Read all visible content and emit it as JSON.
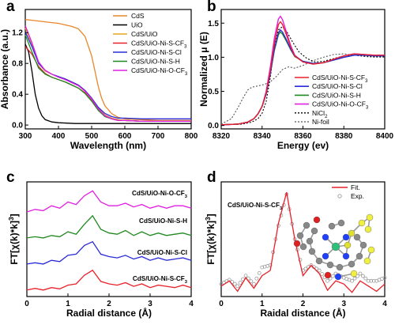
{
  "panels": [
    {
      "letter": "a"
    },
    {
      "letter": "b"
    },
    {
      "letter": "c"
    },
    {
      "letter": "d"
    }
  ],
  "chart_data": [
    {
      "panel": "a",
      "type": "line",
      "xlabel": "Wavelength (nm)",
      "ylabel": "Absorbance (a.u.)",
      "xlim": [
        300,
        800
      ],
      "ylim": [
        -0.05,
        1.5
      ],
      "xticks": [
        "300",
        "400",
        "500",
        "600",
        "700",
        "800"
      ],
      "yticks": [
        "0.0",
        "0.4",
        "0.8",
        "1.2"
      ],
      "legend_position": "top-right",
      "series": [
        {
          "name": "CdS",
          "color": "#e8862a",
          "x": [
            300,
            320,
            340,
            360,
            380,
            400,
            420,
            440,
            460,
            480,
            500,
            510,
            520,
            530,
            540,
            560,
            580,
            600,
            650,
            700,
            750,
            800
          ],
          "y": [
            1.37,
            1.36,
            1.35,
            1.34,
            1.33,
            1.32,
            1.3,
            1.28,
            1.25,
            1.15,
            0.9,
            0.7,
            0.5,
            0.35,
            0.25,
            0.15,
            0.1,
            0.08,
            0.07,
            0.06,
            0.06,
            0.06
          ]
        },
        {
          "name": "UiO",
          "color": "#000000",
          "x": [
            300,
            310,
            320,
            330,
            340,
            350,
            360,
            380,
            400,
            450,
            500,
            600,
            700,
            800
          ],
          "y": [
            1.05,
            0.95,
            0.7,
            0.4,
            0.22,
            0.12,
            0.07,
            0.04,
            0.03,
            0.02,
            0.02,
            0.02,
            0.02,
            0.02
          ]
        },
        {
          "name": "CdS/UiO",
          "color": "#e6a51c",
          "x": [
            300,
            320,
            340,
            360,
            380,
            400,
            420,
            440,
            460,
            480,
            500,
            520,
            540,
            560,
            580,
            600,
            650,
            700,
            750,
            800
          ],
          "y": [
            1.26,
            1.05,
            0.8,
            0.7,
            0.66,
            0.63,
            0.6,
            0.56,
            0.52,
            0.45,
            0.35,
            0.22,
            0.13,
            0.09,
            0.07,
            0.06,
            0.05,
            0.05,
            0.05,
            0.05
          ]
        },
        {
          "name": "CdS/UiO-Ni-S-CF3",
          "color": "#e8202a",
          "x": [
            300,
            320,
            340,
            360,
            380,
            400,
            420,
            440,
            460,
            480,
            500,
            520,
            540,
            560,
            580,
            600,
            650,
            700,
            750,
            800
          ],
          "y": [
            1.02,
            0.92,
            0.76,
            0.67,
            0.62,
            0.59,
            0.56,
            0.52,
            0.48,
            0.42,
            0.32,
            0.2,
            0.12,
            0.08,
            0.06,
            0.06,
            0.05,
            0.05,
            0.05,
            0.05
          ]
        },
        {
          "name": "CdS/UiO-Ni-S-Cl",
          "color": "#2a2ad8",
          "x": [
            300,
            320,
            340,
            360,
            380,
            400,
            420,
            440,
            460,
            480,
            500,
            520,
            540,
            560,
            580,
            600,
            650,
            700,
            750,
            800
          ],
          "y": [
            1.21,
            1.02,
            0.8,
            0.71,
            0.66,
            0.63,
            0.6,
            0.56,
            0.52,
            0.45,
            0.35,
            0.23,
            0.15,
            0.11,
            0.09,
            0.09,
            0.08,
            0.08,
            0.08,
            0.08
          ]
        },
        {
          "name": "CdS/UiO-Ni-S-H",
          "color": "#1f8a1f",
          "x": [
            300,
            320,
            340,
            360,
            380,
            400,
            420,
            440,
            460,
            480,
            500,
            520,
            540,
            560,
            580,
            600,
            650,
            700,
            750,
            800
          ],
          "y": [
            1.17,
            0.95,
            0.74,
            0.66,
            0.62,
            0.59,
            0.56,
            0.52,
            0.48,
            0.41,
            0.31,
            0.19,
            0.11,
            0.08,
            0.06,
            0.06,
            0.05,
            0.05,
            0.05,
            0.05
          ]
        },
        {
          "name": "CdS/UiO-Ni-O-CF3",
          "color": "#e020e0",
          "x": [
            300,
            320,
            340,
            360,
            380,
            400,
            420,
            440,
            460,
            480,
            500,
            520,
            540,
            560,
            580,
            600,
            650,
            700,
            750,
            800
          ],
          "y": [
            1.29,
            1.07,
            0.82,
            0.71,
            0.66,
            0.62,
            0.59,
            0.55,
            0.51,
            0.44,
            0.34,
            0.21,
            0.12,
            0.08,
            0.06,
            0.06,
            0.05,
            0.05,
            0.05,
            0.05
          ]
        }
      ]
    },
    {
      "panel": "b",
      "type": "line",
      "xlabel": "Energy (ev)",
      "ylabel": "Normalized μ (E)",
      "xlim": [
        8320,
        8400
      ],
      "ylim": [
        -0.05,
        1.7
      ],
      "xticks": [
        "8320",
        "8340",
        "8360",
        "8380",
        "8400"
      ],
      "yticks": [
        "0.0",
        "0.5",
        "1.0",
        "1.5"
      ],
      "legend_position": "bottom-right",
      "series": [
        {
          "name": "CdS/UiO-Ni-S-CF3",
          "color": "#e8202a",
          "dash": "",
          "x": [
            8320,
            8328,
            8333,
            8336,
            8338,
            8340,
            8342,
            8344,
            8346,
            8348,
            8349,
            8350,
            8352,
            8354,
            8356,
            8360,
            8365,
            8370,
            8375,
            8380,
            8385,
            8390,
            8395,
            8400
          ],
          "y": [
            0.01,
            0.02,
            0.05,
            0.1,
            0.17,
            0.28,
            0.48,
            0.8,
            1.2,
            1.48,
            1.52,
            1.48,
            1.32,
            1.15,
            1.02,
            0.93,
            0.9,
            0.92,
            0.97,
            1.02,
            1.05,
            1.04,
            1.03,
            1.03
          ]
        },
        {
          "name": "CdS/UiO-Ni-S-Cl",
          "color": "#2a2ad8",
          "dash": "",
          "x": [
            8320,
            8328,
            8333,
            8336,
            8338,
            8340,
            8342,
            8344,
            8346,
            8348,
            8349,
            8350,
            8352,
            8354,
            8356,
            8360,
            8365,
            8370,
            8375,
            8380,
            8385,
            8390,
            8395,
            8400
          ],
          "y": [
            0.01,
            0.02,
            0.05,
            0.1,
            0.17,
            0.28,
            0.46,
            0.76,
            1.12,
            1.36,
            1.4,
            1.37,
            1.25,
            1.12,
            1.02,
            0.94,
            0.91,
            0.92,
            0.96,
            1.0,
            1.03,
            1.03,
            1.02,
            1.02
          ]
        },
        {
          "name": "CdS/UiO-Ni-S-H",
          "color": "#1f8a1f",
          "dash": "",
          "x": [
            8320,
            8328,
            8333,
            8336,
            8338,
            8340,
            8342,
            8344,
            8346,
            8348,
            8349,
            8350,
            8352,
            8354,
            8356,
            8360,
            8365,
            8370,
            8375,
            8380,
            8385,
            8390,
            8395,
            8400
          ],
          "y": [
            0.01,
            0.02,
            0.05,
            0.1,
            0.17,
            0.28,
            0.46,
            0.76,
            1.1,
            1.33,
            1.37,
            1.34,
            1.23,
            1.11,
            1.01,
            0.94,
            0.91,
            0.92,
            0.96,
            1.0,
            1.03,
            1.03,
            1.02,
            1.02
          ]
        },
        {
          "name": "CdS/UiO-Ni-O-CF3",
          "color": "#e020e0",
          "dash": "",
          "x": [
            8320,
            8328,
            8333,
            8336,
            8338,
            8340,
            8342,
            8344,
            8346,
            8348,
            8349,
            8350,
            8352,
            8354,
            8356,
            8360,
            8365,
            8370,
            8375,
            8380,
            8385,
            8390,
            8395,
            8400
          ],
          "y": [
            0.01,
            0.02,
            0.05,
            0.1,
            0.17,
            0.28,
            0.5,
            0.85,
            1.28,
            1.56,
            1.6,
            1.55,
            1.36,
            1.17,
            1.03,
            0.93,
            0.9,
            0.92,
            0.97,
            1.02,
            1.05,
            1.04,
            1.03,
            1.03
          ]
        },
        {
          "name": "NiCl2",
          "color": "#000000",
          "dash": "2,2",
          "x": [
            8320,
            8330,
            8335,
            8338,
            8340,
            8342,
            8344,
            8346,
            8348,
            8350,
            8352,
            8355,
            8358,
            8362,
            8366,
            8370,
            8375,
            8380,
            8385,
            8390,
            8395,
            8400
          ],
          "y": [
            0.01,
            0.02,
            0.05,
            0.1,
            0.18,
            0.35,
            0.7,
            1.15,
            1.4,
            1.45,
            1.38,
            1.22,
            1.08,
            0.98,
            0.93,
            0.94,
            0.98,
            1.02,
            1.03,
            1.02,
            1.01,
            1.01
          ]
        },
        {
          "name": "Ni-foil",
          "color": "#555555",
          "dash": "2,2",
          "x": [
            8320,
            8325,
            8328,
            8331,
            8333,
            8335,
            8338,
            8341,
            8344,
            8347,
            8350,
            8353,
            8356,
            8360,
            8365,
            8370,
            8375,
            8380,
            8385,
            8390,
            8395,
            8400
          ],
          "y": [
            0.02,
            0.1,
            0.25,
            0.42,
            0.52,
            0.56,
            0.58,
            0.6,
            0.64,
            0.72,
            0.82,
            0.86,
            0.84,
            0.88,
            0.95,
            1.0,
            1.04,
            1.05,
            1.03,
            1.01,
            1.0,
            1.0
          ]
        }
      ]
    },
    {
      "panel": "c",
      "type": "line",
      "xlabel": "Radial distance (Å)",
      "ylabel": "FT[χ(k)*k³]",
      "xlim": [
        0,
        4
      ],
      "xticks": [
        "0",
        "1",
        "2",
        "3",
        "4"
      ],
      "series": [
        {
          "name": "CdS/UiO-Ni-S-CF3",
          "color": "#e8202a",
          "offset": 0.0,
          "x": [
            0,
            0.2,
            0.4,
            0.6,
            0.8,
            1.0,
            1.2,
            1.4,
            1.6,
            1.8,
            2.0,
            2.2,
            2.4,
            2.6,
            2.8,
            3.0,
            3.2,
            3.4,
            3.6,
            3.8,
            4.0
          ],
          "y": [
            0.05,
            0.12,
            0.05,
            0.15,
            0.1,
            0.25,
            0.3,
            0.65,
            0.85,
            0.4,
            0.3,
            0.25,
            0.35,
            0.2,
            0.3,
            0.15,
            0.25,
            0.2,
            0.15,
            0.25,
            0.15
          ]
        },
        {
          "name": "CdS/UiO-Ni-S-Cl",
          "color": "#2a2ad8",
          "offset": 1.0,
          "x": [
            0,
            0.2,
            0.4,
            0.6,
            0.8,
            1.0,
            1.2,
            1.4,
            1.6,
            1.8,
            2.0,
            2.2,
            2.4,
            2.6,
            2.8,
            3.0,
            3.2,
            3.4,
            3.6,
            3.8,
            4.0
          ],
          "y": [
            0.05,
            0.1,
            0.05,
            0.2,
            0.15,
            0.4,
            0.45,
            0.8,
            0.95,
            0.45,
            0.35,
            0.3,
            0.4,
            0.25,
            0.35,
            0.2,
            0.3,
            0.2,
            0.25,
            0.3,
            0.2
          ]
        },
        {
          "name": "CdS/UiO-Ni-S-H",
          "color": "#1f8a1f",
          "offset": 2.0,
          "x": [
            0,
            0.2,
            0.4,
            0.6,
            0.8,
            1.0,
            1.2,
            1.4,
            1.6,
            1.8,
            2.0,
            2.2,
            2.4,
            2.6,
            2.8,
            3.0,
            3.2,
            3.4,
            3.6,
            3.8,
            4.0
          ],
          "y": [
            0.05,
            0.1,
            0.05,
            0.15,
            0.1,
            0.3,
            0.2,
            0.6,
            0.95,
            0.4,
            0.25,
            0.2,
            0.35,
            0.15,
            0.3,
            0.15,
            0.25,
            0.15,
            0.2,
            0.25,
            0.15
          ]
        },
        {
          "name": "CdS/UiO-Ni-O-CF3",
          "color": "#e020e0",
          "offset": 3.0,
          "x": [
            0,
            0.2,
            0.4,
            0.6,
            0.8,
            1.0,
            1.2,
            1.4,
            1.6,
            1.8,
            2.0,
            2.2,
            2.4,
            2.6,
            2.8,
            3.0,
            3.2,
            3.4,
            3.6,
            3.8,
            4.0
          ],
          "y": [
            0.05,
            0.15,
            0.1,
            0.3,
            0.2,
            0.45,
            0.35,
            0.7,
            0.9,
            0.45,
            0.3,
            0.3,
            0.4,
            0.25,
            0.35,
            0.2,
            0.3,
            0.2,
            0.3,
            0.3,
            0.2
          ]
        }
      ]
    },
    {
      "panel": "d",
      "type": "line",
      "xlabel": "Raidal distance (Å)",
      "ylabel": "FT[χ(k)*k³]",
      "xlim": [
        0,
        4
      ],
      "ylim": [
        0,
        1.1
      ],
      "xticks": [
        "0",
        "1",
        "2",
        "3",
        "4"
      ],
      "legend_position": "top-right",
      "annotation": "CdS/UiO-Ni-S-CF3",
      "series": [
        {
          "name": "Fit.",
          "color": "#e8202a",
          "style": "line",
          "x": [
            0,
            0.2,
            0.4,
            0.6,
            0.8,
            1.0,
            1.2,
            1.4,
            1.6,
            1.8,
            2.0,
            2.2,
            2.4,
            2.6,
            2.8,
            3.0,
            3.2,
            3.4,
            3.6,
            3.8,
            4.0
          ],
          "y": [
            0.1,
            0.15,
            0.05,
            0.18,
            0.08,
            0.2,
            0.25,
            0.7,
            1.0,
            0.55,
            0.2,
            0.3,
            0.22,
            0.06,
            0.15,
            0.12,
            0.04,
            0.15,
            0.1,
            0.05,
            0.12
          ]
        },
        {
          "name": "Exp.",
          "color": "#999999",
          "style": "marker",
          "x": [
            0,
            0.2,
            0.4,
            0.6,
            0.8,
            1.0,
            1.2,
            1.4,
            1.6,
            1.8,
            2.0,
            2.2,
            2.4,
            2.6,
            2.8,
            3.0,
            3.2,
            3.4,
            3.6,
            3.8,
            4.0
          ],
          "y": [
            0.12,
            0.16,
            0.1,
            0.2,
            0.12,
            0.28,
            0.3,
            0.68,
            0.98,
            0.55,
            0.25,
            0.3,
            0.25,
            0.15,
            0.22,
            0.18,
            0.15,
            0.22,
            0.15,
            0.15,
            0.18
          ]
        }
      ]
    }
  ]
}
